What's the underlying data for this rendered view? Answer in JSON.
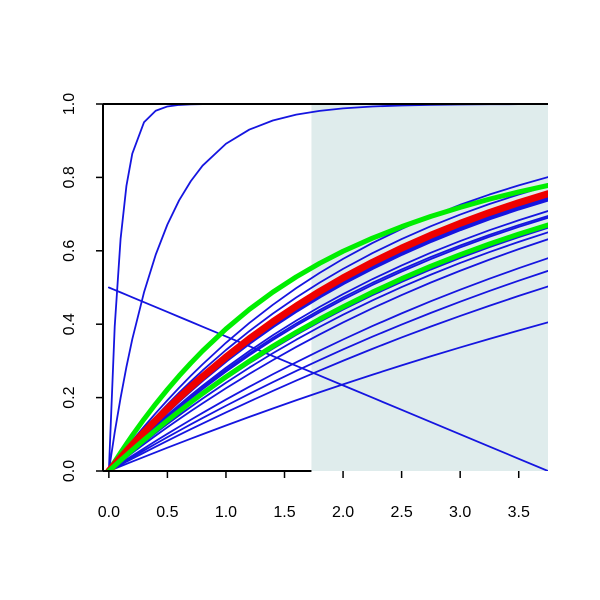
{
  "chart_data": {
    "type": "line",
    "title": "",
    "xlabel": "",
    "ylabel": "",
    "xlim": [
      -0.05,
      3.75
    ],
    "ylim": [
      0.0,
      1.0
    ],
    "x_ticks": [
      {
        "value": 0.0,
        "label": "0.0"
      },
      {
        "value": 0.5,
        "label": "0.5"
      },
      {
        "value": 1.0,
        "label": "1.0"
      },
      {
        "value": 1.5,
        "label": "1.5"
      },
      {
        "value": 2.0,
        "label": "2.0"
      },
      {
        "value": 2.5,
        "label": "2.5"
      },
      {
        "value": 3.0,
        "label": "3.0"
      },
      {
        "value": 3.5,
        "label": "3.5"
      }
    ],
    "y_ticks": [
      {
        "value": 0.0,
        "label": "0.0"
      },
      {
        "value": 0.2,
        "label": "0.2"
      },
      {
        "value": 0.4,
        "label": "0.4"
      },
      {
        "value": 0.6,
        "label": "0.6"
      },
      {
        "value": 0.8,
        "label": "0.8"
      },
      {
        "value": 1.0,
        "label": "1.0"
      }
    ],
    "grid": false,
    "legend": "none",
    "shaded_region": {
      "x_from": 1.73,
      "x_to": 3.75,
      "y_from": 0.0,
      "y_to": 1.0,
      "color": "#dfecec"
    },
    "colors": {
      "blue": "#1515e0",
      "green": "#00ee00",
      "red": "#ee0000",
      "axis": "#000000"
    },
    "x": [
      0.0,
      0.05,
      0.1,
      0.15,
      0.2,
      0.3,
      0.4,
      0.5,
      0.6,
      0.7,
      0.8,
      1.0,
      1.2,
      1.4,
      1.6,
      1.8,
      2.0,
      2.25,
      2.5,
      2.75,
      3.0,
      3.25,
      3.5,
      3.75
    ],
    "series": [
      {
        "color": "blue",
        "width": 1.8,
        "values": [
          0.0,
          0.3935,
          0.6321,
          0.7769,
          0.8647,
          0.9502,
          0.9817,
          0.9933,
          0.9975,
          0.9991,
          0.9997,
          1.0,
          1.0,
          1.0,
          1.0,
          1.0,
          1.0,
          1.0,
          1.0,
          1.0,
          1.0,
          1.0,
          1.0,
          1.0
        ]
      },
      {
        "color": "blue",
        "width": 1.8,
        "values": [
          0.0,
          0.1052,
          0.1991,
          0.2835,
          0.3592,
          0.4866,
          0.5893,
          0.6717,
          0.7376,
          0.7898,
          0.8319,
          0.8916,
          0.9303,
          0.955,
          0.971,
          0.9813,
          0.988,
          0.9932,
          0.9961,
          0.9978,
          0.9988,
          0.9993,
          0.9996,
          0.9998
        ]
      },
      {
        "color": "blue",
        "width": 1.8,
        "values": [
          0.0,
          0.0212,
          0.0419,
          0.0622,
          0.0821,
          0.1206,
          0.1575,
          0.1929,
          0.2269,
          0.2594,
          0.2906,
          0.3494,
          0.4034,
          0.4528,
          0.4982,
          0.5398,
          0.578,
          0.621,
          0.6597,
          0.6943,
          0.7254,
          0.7533,
          0.7784,
          0.8009
        ]
      },
      {
        "color": "blue",
        "width": 1.8,
        "values": [
          0.0,
          0.0198,
          0.0392,
          0.0582,
          0.0769,
          0.1131,
          0.1479,
          0.1813,
          0.2134,
          0.2442,
          0.2739,
          0.3297,
          0.3812,
          0.4288,
          0.4727,
          0.5132,
          0.5507,
          0.5934,
          0.6321,
          0.6671,
          0.6988,
          0.7275,
          0.7534,
          0.7769
        ]
      },
      {
        "color": "blue",
        "width": 1.8,
        "values": [
          0.0,
          0.0183,
          0.0363,
          0.054,
          0.0714,
          0.1052,
          0.1379,
          0.1693,
          0.1996,
          0.2289,
          0.2571,
          0.3106,
          0.3603,
          0.4065,
          0.4493,
          0.4891,
          0.5262,
          0.5685,
          0.6073,
          0.6426,
          0.6749,
          0.7043,
          0.731,
          0.7554
        ]
      },
      {
        "color": "blue",
        "width": 1.8,
        "values": [
          0.0,
          0.0163,
          0.0324,
          0.0482,
          0.0638,
          0.0942,
          0.1237,
          0.1522,
          0.1798,
          0.2065,
          0.2323,
          0.2813,
          0.3269,
          0.3698,
          0.4098,
          0.4472,
          0.4822,
          0.5228,
          0.5602,
          0.5949,
          0.6266,
          0.6561,
          0.6832,
          0.7084
        ]
      },
      {
        "color": "blue",
        "width": 1.8,
        "values": [
          0.0,
          0.0159,
          0.0316,
          0.0471,
          0.0624,
          0.0921,
          0.121,
          0.1489,
          0.176,
          0.2021,
          0.2275,
          0.2757,
          0.3206,
          0.3626,
          0.4018,
          0.4385,
          0.4729,
          0.5126,
          0.5493,
          0.5832,
          0.6145,
          0.6434,
          0.6701,
          0.6948
        ]
      },
      {
        "color": "blue",
        "width": 1.8,
        "values": [
          0.0,
          0.0155,
          0.0308,
          0.0459,
          0.0609,
          0.09,
          0.1182,
          0.1457,
          0.1723,
          0.1981,
          0.2231,
          0.2708,
          0.3154,
          0.3571,
          0.3962,
          0.4328,
          0.4671,
          0.5069,
          0.5436,
          0.5776,
          0.6091,
          0.6382,
          0.6651,
          0.69
        ]
      },
      {
        "color": "blue",
        "width": 1.8,
        "values": [
          0.0,
          0.0142,
          0.0282,
          0.0421,
          0.0558,
          0.0826,
          0.1088,
          0.1342,
          0.1589,
          0.183,
          0.2064,
          0.2512,
          0.2935,
          0.3333,
          0.3709,
          0.4064,
          0.4398,
          0.4789,
          0.5152,
          0.5491,
          0.5806,
          0.6099,
          0.6372,
          0.6626
        ]
      },
      {
        "color": "blue",
        "width": 1.8,
        "values": [
          0.0,
          0.0135,
          0.0268,
          0.04,
          0.0531,
          0.0787,
          0.1036,
          0.1279,
          0.1516,
          0.1747,
          0.1973,
          0.2406,
          0.2818,
          0.3208,
          0.3577,
          0.3927,
          0.4259,
          0.4648,
          0.5011,
          0.5351,
          0.5669,
          0.5966,
          0.6244,
          0.6504
        ]
      },
      {
        "color": "blue",
        "width": 1.8,
        "values": [
          0.0,
          0.0125,
          0.0248,
          0.0371,
          0.0492,
          0.073,
          0.0963,
          0.1191,
          0.1413,
          0.1631,
          0.1843,
          0.2254,
          0.2647,
          0.3022,
          0.338,
          0.3722,
          0.4048,
          0.4433,
          0.4795,
          0.5136,
          0.5457,
          0.576,
          0.6046,
          0.6315
        ]
      },
      {
        "color": "blue",
        "width": 1.8,
        "values": [
          0.0,
          0.0105,
          0.0209,
          0.0312,
          0.0415,
          0.0617,
          0.0817,
          0.1013,
          0.1206,
          0.1396,
          0.1582,
          0.1946,
          0.2297,
          0.2636,
          0.2962,
          0.3278,
          0.3583,
          0.3948,
          0.4295,
          0.4626,
          0.4941,
          0.5241,
          0.5526,
          0.5798
        ]
      },
      {
        "color": "blue",
        "width": 1.8,
        "values": [
          0.0,
          0.0095,
          0.0189,
          0.0283,
          0.0376,
          0.056,
          0.0742,
          0.0921,
          0.1097,
          0.1271,
          0.1442,
          0.1778,
          0.2104,
          0.242,
          0.2727,
          0.3024,
          0.3312,
          0.3659,
          0.3991,
          0.4309,
          0.4614,
          0.4906,
          0.5186,
          0.5453
        ]
      },
      {
        "color": "blue",
        "width": 1.8,
        "values": [
          0.0,
          0.0085,
          0.0169,
          0.0252,
          0.0335,
          0.05,
          0.0663,
          0.0824,
          0.0983,
          0.114,
          0.1294,
          0.1597,
          0.1893,
          0.2181,
          0.2463,
          0.2737,
          0.3004,
          0.3328,
          0.3639,
          0.3938,
          0.4226,
          0.4503,
          0.4771,
          0.5028
        ]
      },
      {
        "color": "blue",
        "width": 1.8,
        "values": [
          0.0,
          0.0065,
          0.0129,
          0.0193,
          0.0257,
          0.0384,
          0.051,
          0.0635,
          0.0758,
          0.088,
          0.1001,
          0.124,
          0.1474,
          0.1703,
          0.1927,
          0.2146,
          0.2361,
          0.2623,
          0.2878,
          0.3126,
          0.3367,
          0.3601,
          0.3829,
          0.405
        ]
      },
      {
        "color": "blue",
        "width": 1.8,
        "values": [
          0.5,
          0.4933,
          0.4867,
          0.48,
          0.4733,
          0.46,
          0.4467,
          0.4333,
          0.42,
          0.4067,
          0.3933,
          0.3667,
          0.34,
          0.3133,
          0.2867,
          0.26,
          0.2333,
          0.2,
          0.1667,
          0.1333,
          0.1,
          0.0667,
          0.0333,
          0.0
        ]
      },
      {
        "color": "blue",
        "width": 5,
        "values": [
          0.0,
          0.0178,
          0.0353,
          0.0526,
          0.0695,
          0.1024,
          0.1342,
          0.1648,
          0.1944,
          0.2229,
          0.2505,
          0.3027,
          0.3512,
          0.3963,
          0.4382,
          0.4772,
          0.5134,
          0.5549,
          0.5932,
          0.6284,
          0.6605,
          0.6899,
          0.7168,
          0.7412
        ]
      },
      {
        "color": "green",
        "width": 5,
        "values": [
          0.0,
          0.0252,
          0.0498,
          0.0737,
          0.0968,
          0.1411,
          0.1828,
          0.2221,
          0.2592,
          0.2941,
          0.3271,
          0.3872,
          0.4404,
          0.4874,
          0.529,
          0.5659,
          0.5987,
          0.6344,
          0.6658,
          0.6937,
          0.7184,
          0.7408,
          0.7604,
          0.778
        ]
      },
      {
        "color": "red",
        "width": 7,
        "values": [
          0.0,
          0.0183,
          0.0363,
          0.054,
          0.0714,
          0.1052,
          0.1379,
          0.1693,
          0.1996,
          0.2289,
          0.2571,
          0.3106,
          0.3603,
          0.4065,
          0.4493,
          0.4891,
          0.5262,
          0.5685,
          0.6073,
          0.6426,
          0.6749,
          0.7043,
          0.731,
          0.7554
        ]
      },
      {
        "color": "green",
        "width": 5,
        "values": [
          0.0,
          0.0145,
          0.0289,
          0.0431,
          0.0571,
          0.0846,
          0.1114,
          0.1374,
          0.1627,
          0.1872,
          0.2111,
          0.2567,
          0.2996,
          0.34,
          0.378,
          0.4138,
          0.4474,
          0.4872,
          0.5239,
          0.558,
          0.5894,
          0.6185,
          0.6454,
          0.6702
        ]
      }
    ]
  }
}
